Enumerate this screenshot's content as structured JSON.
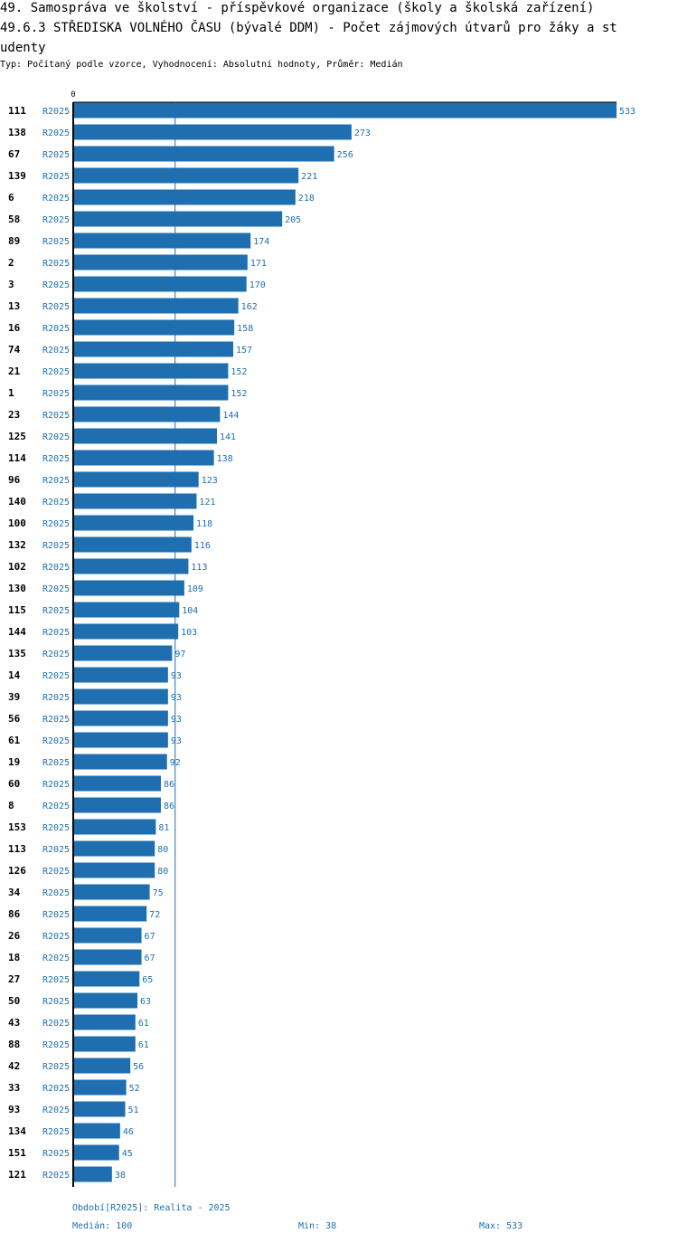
{
  "header": {
    "line1": "49. Samospráva ve školství - příspěvkové organizace (školy a školská zařízení)",
    "line2": "49.6.3 STŘEDISKA VOLNÉHO ČASU (bývalé DDM) - Počet zájmových útvarů pro žáky a st",
    "line3": "udenty",
    "subtitle": "Typ: Počítaný podle vzorce, Vyhodnocení: Absolutní hodnoty, Průměr: Medián"
  },
  "colors": {
    "bar": "#1f6fb0",
    "label": "#1f6fb0",
    "axis": "#000000",
    "median": "#1f6fb0"
  },
  "chart_data": {
    "type": "bar",
    "orientation": "horizontal",
    "axis_zero_label": "0",
    "period": "R2025",
    "median": 100,
    "categories": [
      "111",
      "138",
      "67",
      "139",
      "6",
      "58",
      "89",
      "2",
      "3",
      "13",
      "16",
      "74",
      "21",
      "1",
      "23",
      "125",
      "114",
      "96",
      "140",
      "100",
      "132",
      "102",
      "130",
      "115",
      "144",
      "135",
      "14",
      "39",
      "56",
      "61",
      "19",
      "60",
      "8",
      "153",
      "113",
      "126",
      "34",
      "86",
      "26",
      "18",
      "27",
      "50",
      "43",
      "88",
      "42",
      "33",
      "93",
      "134",
      "151",
      "121"
    ],
    "values": [
      533,
      273,
      256,
      221,
      218,
      205,
      174,
      171,
      170,
      162,
      158,
      157,
      152,
      152,
      144,
      141,
      138,
      123,
      121,
      118,
      116,
      113,
      109,
      104,
      103,
      97,
      93,
      93,
      93,
      93,
      92,
      86,
      86,
      81,
      80,
      80,
      75,
      72,
      67,
      67,
      65,
      63,
      61,
      61,
      56,
      52,
      51,
      46,
      45,
      38
    ],
    "xlim": [
      0,
      533
    ]
  },
  "footer": {
    "period_text": "Období[R2025]: Realita - 2025",
    "median_text": "Medián: 100",
    "min_text": "Min: 38",
    "max_text": "Max: 533"
  }
}
